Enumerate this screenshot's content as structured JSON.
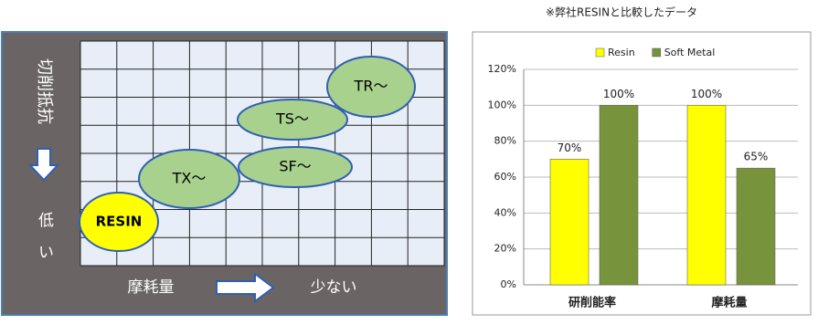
{
  "diagram": {
    "y_axis_label": "切削抵抗",
    "y_axis_low": "低い",
    "x_axis_label": "摩耗量",
    "x_axis_end": "少ない",
    "nodes": [
      {
        "label": "RESIN"
      },
      {
        "label": "TX～"
      },
      {
        "label": "SF～"
      },
      {
        "label": "TS～"
      },
      {
        "label": "TR～"
      }
    ]
  },
  "chart_data": {
    "type": "bar",
    "note": "※弊社RESINと比較したデータ",
    "categories": [
      "研削能率",
      "摩耗量"
    ],
    "series": [
      {
        "name": "Resin",
        "color": "#ffff00",
        "values": [
          70,
          100
        ],
        "value_labels": [
          "70%",
          "100%"
        ]
      },
      {
        "name": "Soft Metal",
        "color": "#77933c",
        "values": [
          100,
          65
        ],
        "value_labels": [
          "100%",
          "65%"
        ]
      }
    ],
    "ylim": [
      0,
      120
    ],
    "yticks": [
      {
        "value": 0,
        "label": "0%"
      },
      {
        "value": 20,
        "label": "20%"
      },
      {
        "value": 40,
        "label": "40%"
      },
      {
        "value": 60,
        "label": "60%"
      },
      {
        "value": 80,
        "label": "80%"
      },
      {
        "value": 100,
        "label": "100%"
      },
      {
        "value": 120,
        "label": "120%"
      }
    ],
    "grid": true,
    "legend": "top"
  }
}
